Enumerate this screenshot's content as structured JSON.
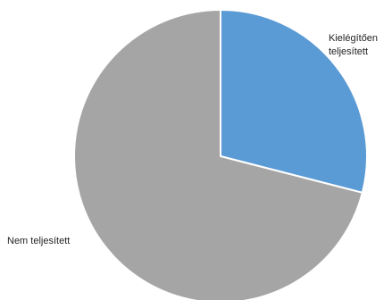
{
  "chart_data": {
    "type": "pie",
    "start_angle_deg": 0,
    "direction": "clockwise",
    "slices": [
      {
        "label": "Kielégítően\nteljesített",
        "value": 29,
        "color": "#5B9BD5"
      },
      {
        "label": "Nem teljesített",
        "value": 71,
        "color": "#A5A5A5"
      }
    ],
    "slice_border_color": "#ffffff"
  }
}
